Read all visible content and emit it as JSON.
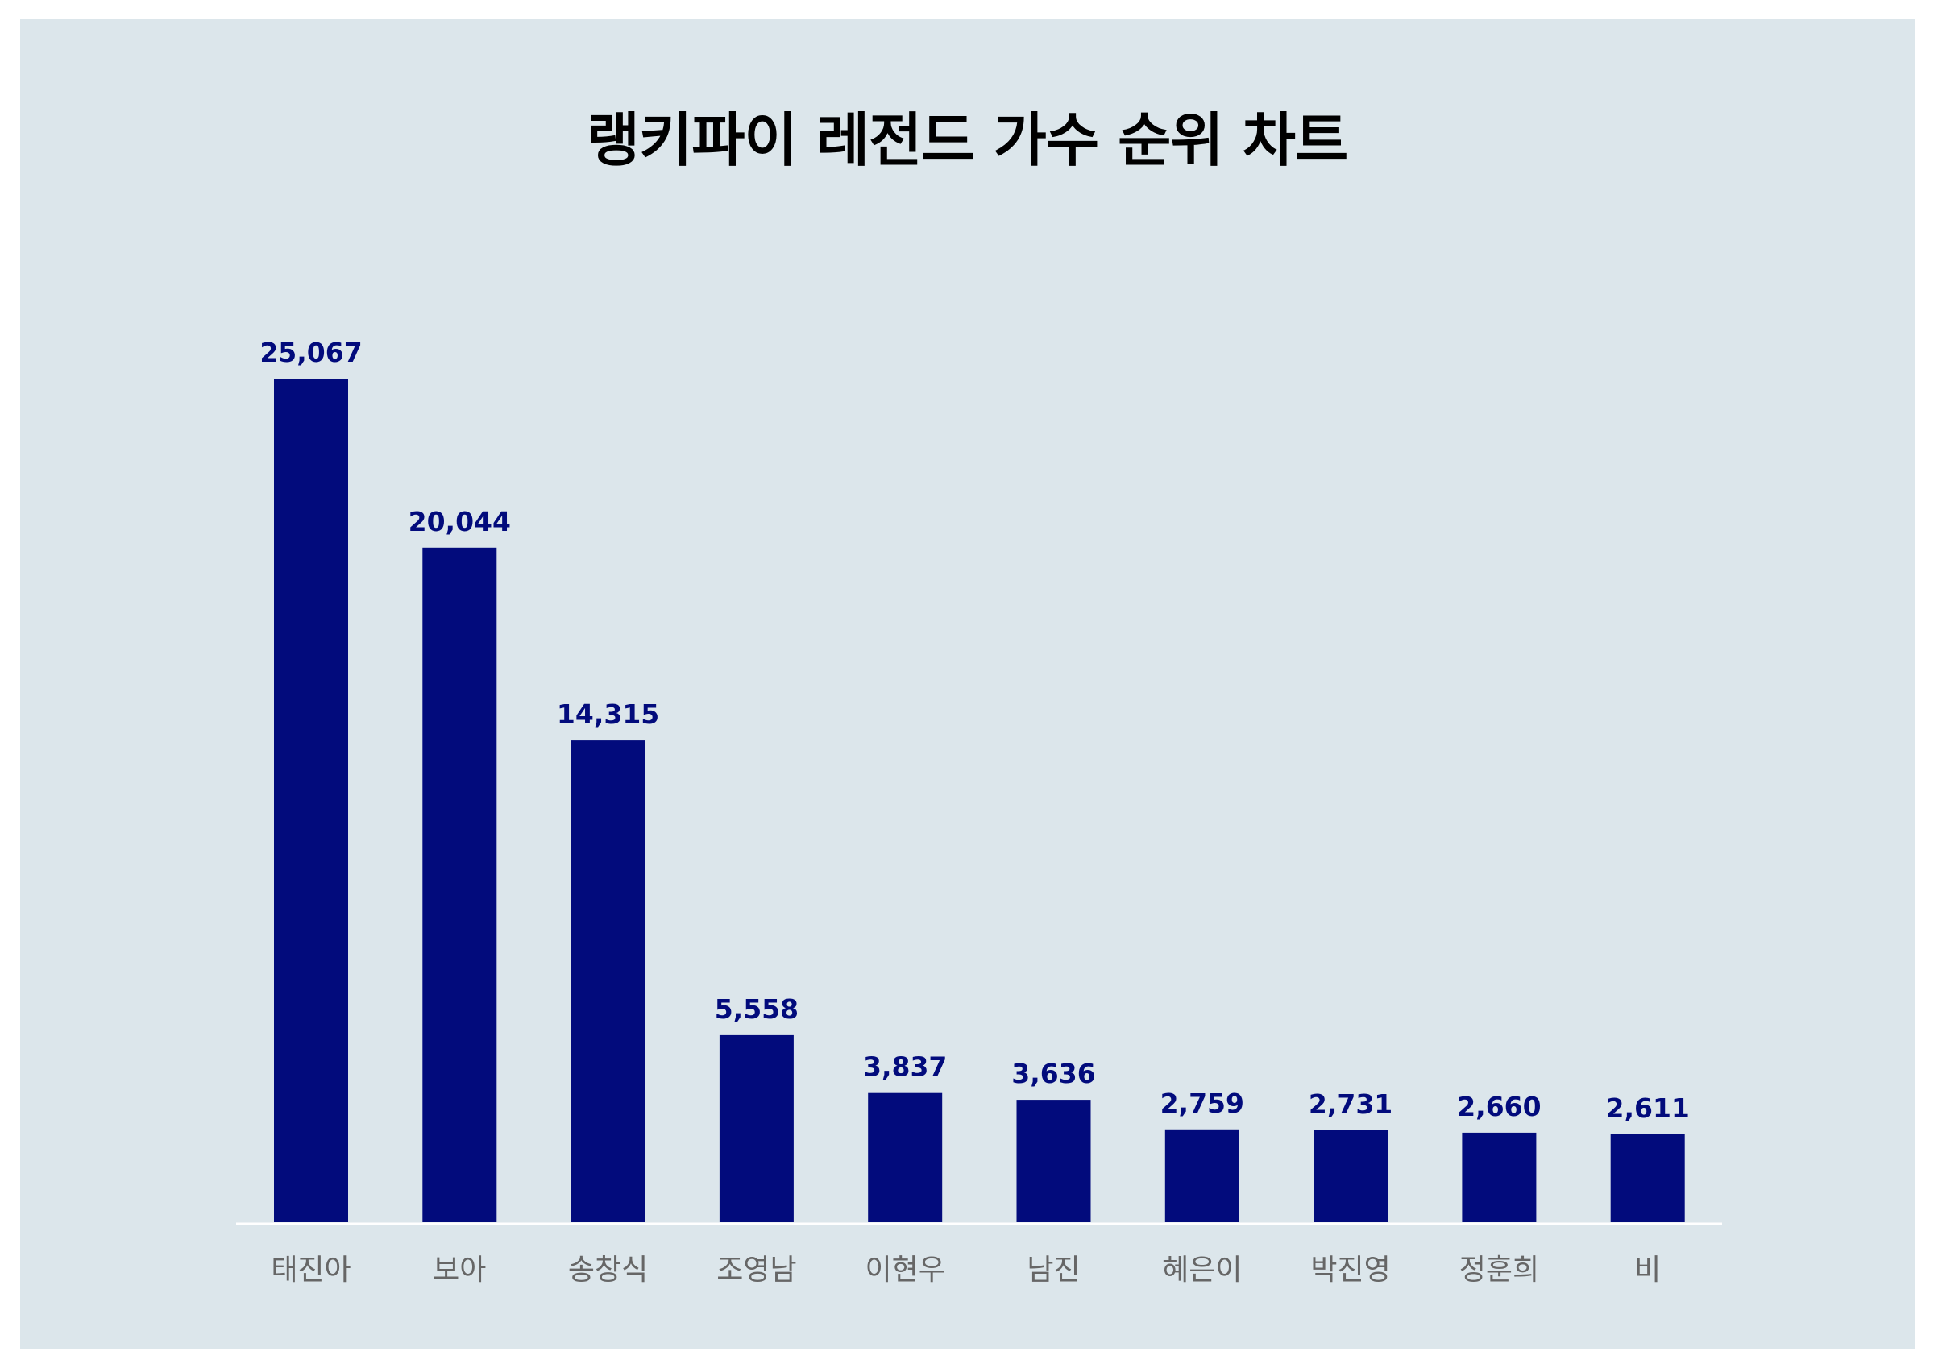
{
  "chart_data": {
    "type": "bar",
    "title": "랭키파이 레전드 가수 순위 차트",
    "categories": [
      "태진아",
      "보아",
      "송창식",
      "조영남",
      "이현우",
      "남진",
      "혜은이",
      "박진영",
      "정훈희",
      "비"
    ],
    "values": [
      25067,
      20044,
      14315,
      5558,
      3837,
      3636,
      2759,
      2731,
      2660,
      2611
    ],
    "value_labels": [
      "25,067",
      "20,044",
      "14,315",
      "5,558",
      "3,837",
      "3,636",
      "2,759",
      "2,731",
      "2,660",
      "2,611"
    ],
    "ylim": [
      0,
      25067
    ],
    "grid": false,
    "legend": "none"
  },
  "colors": {
    "bar": "#020b7c",
    "panel": "#dce6eb",
    "axis": "#ffffff",
    "category_text": "#666666"
  }
}
